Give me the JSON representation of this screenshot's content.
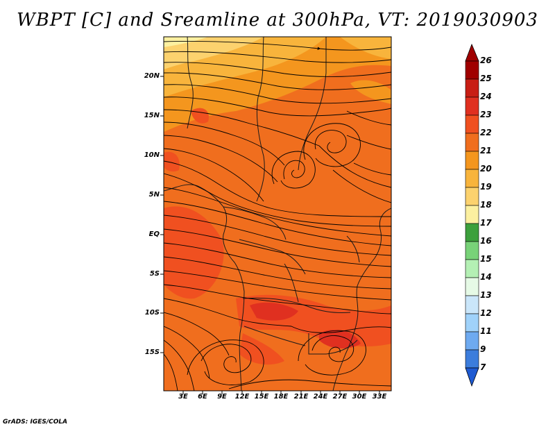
{
  "title": "WBPT [C] and Sreamline at 300hPa, VT: 2019030903",
  "credit": "GrADS: IGES/COLA",
  "map": {
    "lat_ticks": [
      "20N",
      "15N",
      "10N",
      "5N",
      "EQ",
      "5S",
      "10S",
      "15S"
    ],
    "lon_ticks": [
      "3E",
      "6E",
      "9E",
      "12E",
      "15E",
      "18E",
      "21E",
      "24E",
      "27E",
      "30E",
      "33E"
    ],
    "field": "Wet-bulb potential temperature [C]",
    "overlay": "Streamlines at 300hPa"
  },
  "colorbar": {
    "labels": [
      "26",
      "25",
      "24",
      "23",
      "22",
      "21",
      "20",
      "19",
      "18",
      "17",
      "16",
      "15",
      "14",
      "13",
      "12",
      "11",
      "9",
      "7"
    ],
    "colors": [
      "#a00000",
      "#c81e14",
      "#e03020",
      "#f05020",
      "#f06e1e",
      "#f4961e",
      "#f8b43c",
      "#fcd26e",
      "#fcf0a0",
      "#e6f5c8",
      "#3ca03c",
      "#78d278",
      "#b4f0b4",
      "#e6fae6",
      "#cae6fa",
      "#a0d2fa",
      "#6eaaf0",
      "#3c7ddc",
      "#1e5ad2"
    ]
  }
}
